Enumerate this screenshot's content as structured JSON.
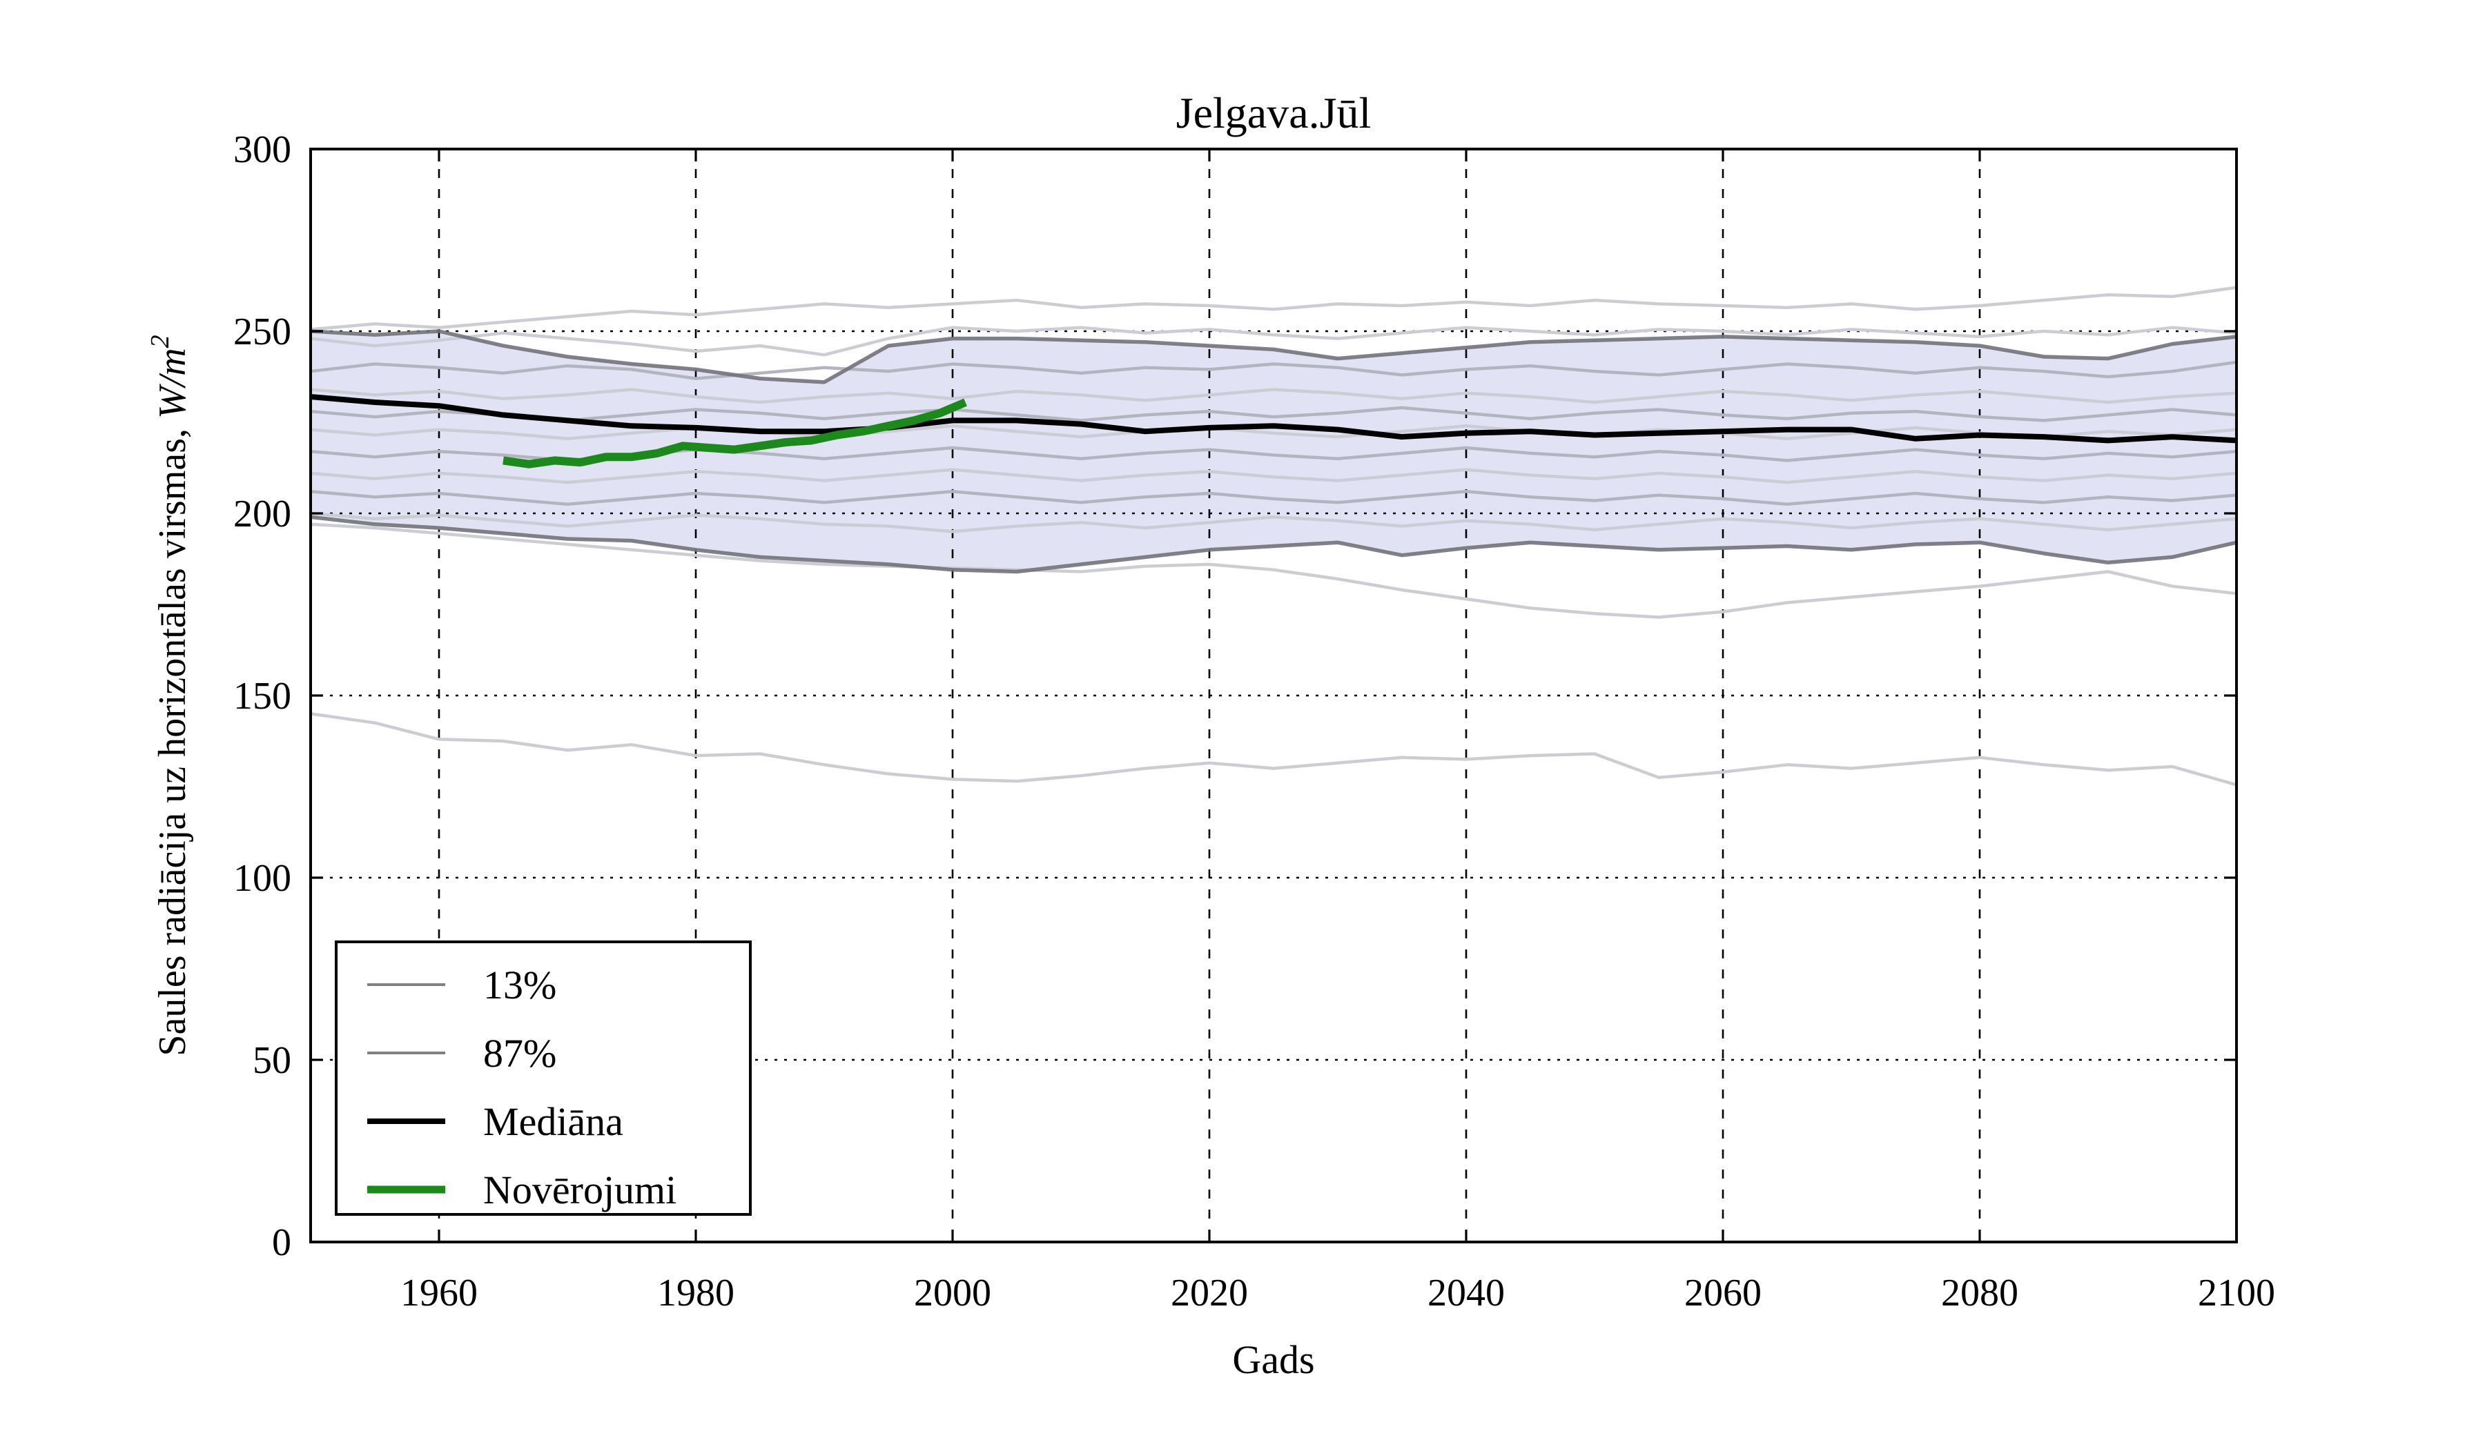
{
  "chart_data": {
    "type": "line",
    "title": "Jelgava.Jūl",
    "xlabel": "Gads",
    "ylabel_plain": "Saules radiācija uz horizontālas virsmas, ",
    "ylabel_math": "W/m",
    "ylabel_sup": "2",
    "xlim": [
      1950,
      2100
    ],
    "ylim": [
      0,
      300
    ],
    "xticks": [
      1960,
      1980,
      2000,
      2020,
      2040,
      2060,
      2080,
      2100
    ],
    "yticks": [
      0,
      50,
      100,
      150,
      200,
      250,
      300
    ],
    "grid": true,
    "legend_position": "lower left",
    "legend": [
      {
        "label": "13%",
        "color": "#808080",
        "width": 4
      },
      {
        "label": "87%",
        "color": "#808080",
        "width": 4
      },
      {
        "label": "Mediāna",
        "color": "#000000",
        "width": 8
      },
      {
        "label": "Novērojumi",
        "color": "#1b8a1b",
        "width": 11
      }
    ],
    "band_fill": "#e2e2f5",
    "band_edge_color": "#72727a",
    "median_color": "#000000",
    "observations_color": "#1b8a1b",
    "ensemble_color_light": "#ccccd4",
    "ensemble_color_mid": "#b4b4bf",
    "years": [
      1950,
      1955,
      1960,
      1965,
      1970,
      1975,
      1980,
      1985,
      1990,
      1995,
      2000,
      2005,
      2010,
      2015,
      2020,
      2025,
      2030,
      2035,
      2040,
      2045,
      2050,
      2055,
      2060,
      2065,
      2070,
      2075,
      2080,
      2085,
      2090,
      2095,
      2100
    ],
    "percentile_87": [
      250,
      249,
      250,
      246,
      243,
      241,
      239.5,
      237,
      236,
      246,
      248,
      248,
      247.5,
      247,
      246,
      245,
      242.5,
      244,
      245.5,
      247,
      247.5,
      248,
      248.5,
      248,
      247.5,
      247,
      246,
      243,
      242.5,
      246.5,
      248.5
    ],
    "percentile_13": [
      199,
      197,
      196,
      194.5,
      193,
      192.5,
      190,
      188,
      187,
      186,
      184.5,
      184,
      186,
      188,
      190,
      191,
      192,
      188.5,
      190.5,
      192,
      191,
      190,
      190.5,
      191,
      190,
      191.5,
      192,
      189,
      186.5,
      188,
      192
    ],
    "median": [
      232,
      230.5,
      229.5,
      227,
      225.5,
      224,
      223.5,
      222.5,
      222.5,
      223.5,
      225.5,
      225.5,
      224.5,
      222.5,
      223.5,
      224,
      223,
      221,
      222,
      222.5,
      221.5,
      222,
      222.5,
      223,
      223,
      220.5,
      221.5,
      221,
      220,
      221,
      220
    ],
    "observations": {
      "years": [
        1965,
        1967,
        1969,
        1971,
        1973,
        1975,
        1977,
        1979,
        1981,
        1983,
        1985,
        1987,
        1989,
        1991,
        1993,
        1995,
        1997,
        1999,
        2001
      ],
      "values": [
        214.5,
        213.5,
        214.5,
        214,
        215.5,
        215.5,
        216.5,
        218.5,
        218,
        217.5,
        218.5,
        219.5,
        220,
        221.5,
        222.5,
        224,
        225.5,
        227.5,
        230.5
      ]
    },
    "ensemble": [
      {
        "shade": "light",
        "values": [
          250.5,
          252,
          251,
          252.5,
          254,
          255.5,
          254.5,
          256,
          257.5,
          256.5,
          257.5,
          258.5,
          256.5,
          257.5,
          257,
          256,
          257.5,
          257,
          258,
          257,
          258.5,
          257.5,
          257,
          256.5,
          257.5,
          256,
          257,
          258.5,
          260,
          259.5,
          262
        ]
      },
      {
        "shade": "light",
        "values": [
          248,
          246,
          247.5,
          249.5,
          248,
          246.5,
          244.5,
          246,
          243.5,
          248,
          251,
          250,
          251,
          249.5,
          250.5,
          249,
          248,
          249.5,
          251,
          250,
          249,
          250.5,
          250,
          249,
          250.5,
          249.5,
          248.5,
          250,
          249,
          251,
          249.5
        ]
      },
      {
        "shade": "mid",
        "values": [
          239,
          241,
          240,
          238.5,
          240.5,
          239.5,
          237,
          238.5,
          240,
          239,
          241,
          240,
          238.5,
          240,
          239.5,
          241,
          240,
          238,
          239.5,
          240.5,
          239,
          238,
          239.5,
          241,
          240,
          238.5,
          240,
          239,
          237.5,
          239,
          241.5
        ]
      },
      {
        "shade": "light",
        "values": [
          234,
          232.5,
          233.5,
          231.5,
          232.5,
          234,
          232,
          230.5,
          232,
          233,
          231.5,
          233.5,
          232.5,
          231,
          232.5,
          234,
          233,
          231.5,
          233,
          232,
          230.5,
          232,
          233.5,
          232.5,
          231,
          232.5,
          233.5,
          232,
          230.5,
          232,
          233
        ]
      },
      {
        "shade": "mid",
        "values": [
          228,
          226.5,
          228,
          227,
          225.5,
          227,
          228.5,
          227.5,
          226,
          227.5,
          228.5,
          227,
          225.5,
          227,
          228,
          226.5,
          227.5,
          229,
          227.5,
          226,
          227.5,
          228.5,
          227,
          226,
          227.5,
          228,
          226.5,
          225.5,
          227,
          228.5,
          227
        ]
      },
      {
        "shade": "light",
        "values": [
          223,
          221.5,
          223,
          222,
          220.5,
          222,
          223.5,
          222.5,
          221,
          222.5,
          224,
          222.5,
          221,
          222.5,
          223.5,
          222,
          221,
          222.5,
          224,
          222.5,
          221.5,
          223,
          222,
          220.5,
          222,
          223.5,
          222,
          221,
          222.5,
          221.5,
          223
        ]
      },
      {
        "shade": "mid",
        "values": [
          217,
          215.5,
          217,
          216,
          214.5,
          216,
          217.5,
          216.5,
          215,
          216.5,
          218,
          216.5,
          215,
          216.5,
          217.5,
          216,
          215,
          216.5,
          218,
          216.5,
          215.5,
          217,
          216,
          214.5,
          216,
          217.5,
          216,
          215,
          216.5,
          215.5,
          217
        ]
      },
      {
        "shade": "light",
        "values": [
          211,
          209.5,
          211,
          210,
          208.5,
          210,
          211.5,
          210.5,
          209,
          210.5,
          212,
          210.5,
          209,
          210.5,
          211.5,
          210,
          209,
          210.5,
          212,
          210.5,
          209.5,
          211,
          210,
          208.5,
          210,
          211.5,
          210,
          209,
          210.5,
          209.5,
          211
        ]
      },
      {
        "shade": "mid",
        "values": [
          206,
          204.5,
          205.5,
          204,
          202.5,
          204,
          205.5,
          204.5,
          203,
          204.5,
          206,
          204.5,
          203,
          204.5,
          205.5,
          204,
          203,
          204.5,
          206,
          204.5,
          203.5,
          205,
          204,
          202.5,
          204,
          205.5,
          204,
          203,
          204.5,
          203.5,
          205
        ]
      },
      {
        "shade": "light",
        "values": [
          200,
          198.5,
          199.5,
          198,
          196.5,
          198,
          199.5,
          198.5,
          197,
          196.5,
          195,
          196.5,
          197.5,
          196,
          197.5,
          199,
          198,
          196.5,
          198,
          197,
          195.5,
          197,
          198.5,
          197.5,
          196,
          197.5,
          198.5,
          197,
          195.5,
          197,
          198.5
        ]
      },
      {
        "shade": "light",
        "values": [
          197,
          196,
          194.5,
          193,
          191.5,
          190,
          188.5,
          187,
          186,
          185.5,
          185,
          184.5,
          184,
          185.5,
          186,
          184.5,
          182,
          179,
          176.5,
          174,
          172.5,
          171.5,
          173,
          175.5,
          177,
          178.5,
          180,
          182,
          184,
          180,
          178
        ]
      },
      {
        "shade": "light",
        "values": [
          145,
          142.5,
          138,
          137.5,
          135,
          136.5,
          133.5,
          134,
          131,
          128.5,
          127,
          126.5,
          128,
          130,
          131.5,
          130,
          131.5,
          133,
          132.5,
          133.5,
          134,
          127.5,
          129,
          131,
          130,
          131.5,
          133,
          131,
          129.5,
          130.5,
          125.5
        ]
      }
    ]
  }
}
